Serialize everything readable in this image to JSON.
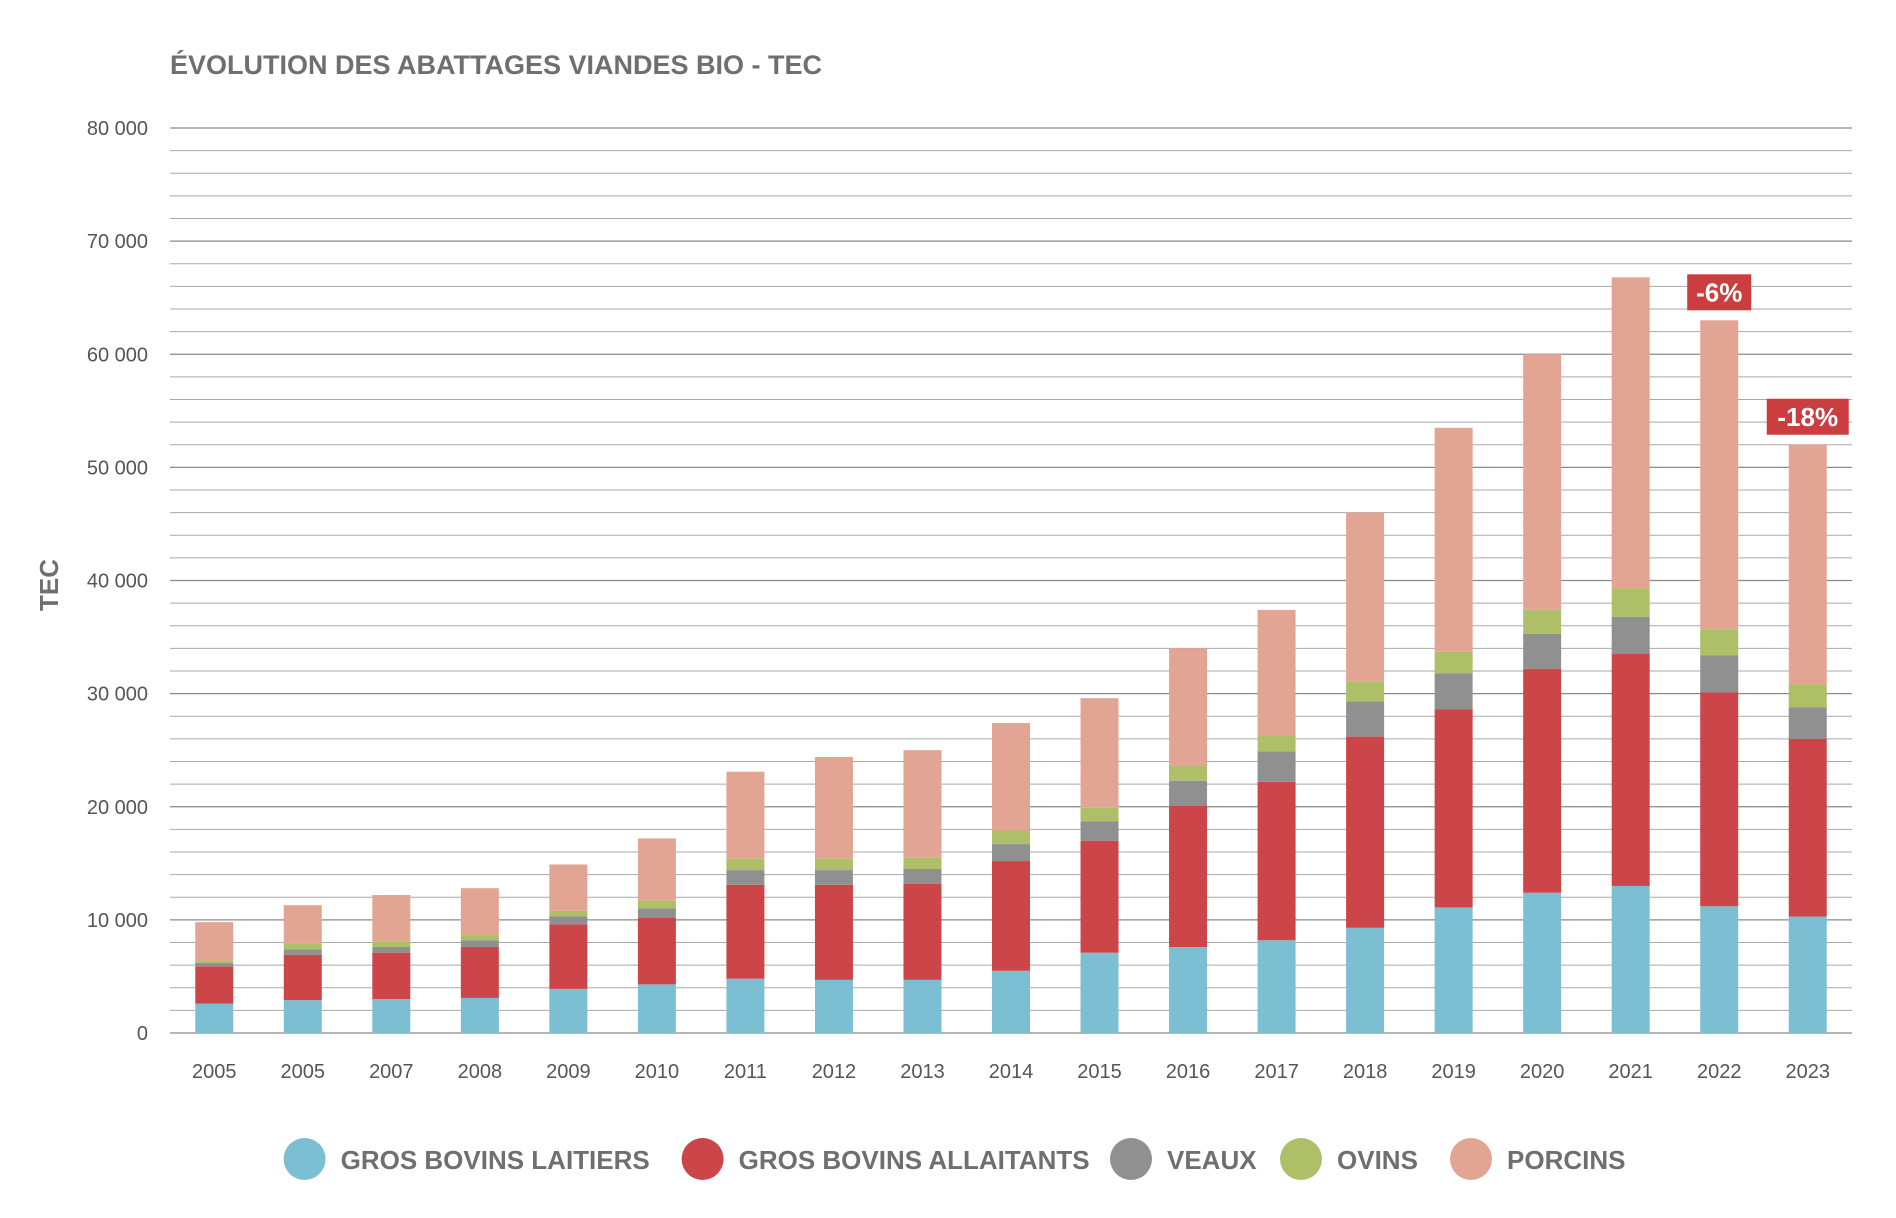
{
  "chart_data": {
    "type": "bar",
    "stacked": true,
    "title": "ÉVOLUTION DES ABATTAGES VIANDES BIO - TEC",
    "ylabel": "TEC",
    "xlabel": "",
    "ylim": [
      0,
      80000
    ],
    "y_major_step": 10000,
    "y_minor_step": 2000,
    "y_tick_labels": [
      "0",
      "10 000",
      "20 000",
      "30 000",
      "40 000",
      "50 000",
      "60 000",
      "70 000",
      "80 000"
    ],
    "grid": true,
    "legend_position": "bottom",
    "categories": [
      "2005",
      "2005",
      "2007",
      "2008",
      "2009",
      "2010",
      "2011",
      "2012",
      "2013",
      "2014",
      "2015",
      "2016",
      "2017",
      "2018",
      "2019",
      "2020",
      "2021",
      "2022",
      "2023"
    ],
    "series": [
      {
        "name": "GROS BOVINS LAITIERS",
        "color": "#7cbfd3",
        "values": [
          2600,
          2900,
          3000,
          3100,
          3900,
          4300,
          4800,
          4700,
          4700,
          5500,
          7100,
          7600,
          8200,
          9300,
          11100,
          12400,
          13000,
          11200,
          10300
        ]
      },
      {
        "name": "GROS BOVINS ALLAITANTS",
        "color": "#cc4548",
        "values": [
          3300,
          4000,
          4100,
          4500,
          5700,
          5900,
          8300,
          8400,
          8500,
          9700,
          9900,
          12500,
          14000,
          16900,
          17500,
          19800,
          20500,
          18900,
          15700
        ]
      },
      {
        "name": "VEAUX",
        "color": "#909090",
        "values": [
          300,
          500,
          500,
          600,
          700,
          800,
          1300,
          1300,
          1300,
          1500,
          1700,
          2200,
          2700,
          3100,
          3200,
          3100,
          3300,
          3300,
          2800
        ]
      },
      {
        "name": "OVINS",
        "color": "#adbf67",
        "values": [
          200,
          500,
          500,
          500,
          500,
          700,
          1000,
          1000,
          1000,
          1200,
          1200,
          1300,
          1400,
          1800,
          1900,
          2100,
          2500,
          2300,
          2000
        ]
      },
      {
        "name": "PORCINS",
        "color": "#e3a593",
        "values": [
          3400,
          3400,
          4100,
          4100,
          4100,
          5500,
          7700,
          9000,
          9500,
          9500,
          9700,
          10400,
          11100,
          14900,
          19800,
          22600,
          27500,
          27300,
          21200
        ]
      }
    ],
    "annotations": [
      {
        "category_index": 17,
        "text": "-6%",
        "color": "#cc3d40"
      },
      {
        "category_index": 18,
        "text": "-18%",
        "color": "#cc3d40"
      }
    ]
  }
}
